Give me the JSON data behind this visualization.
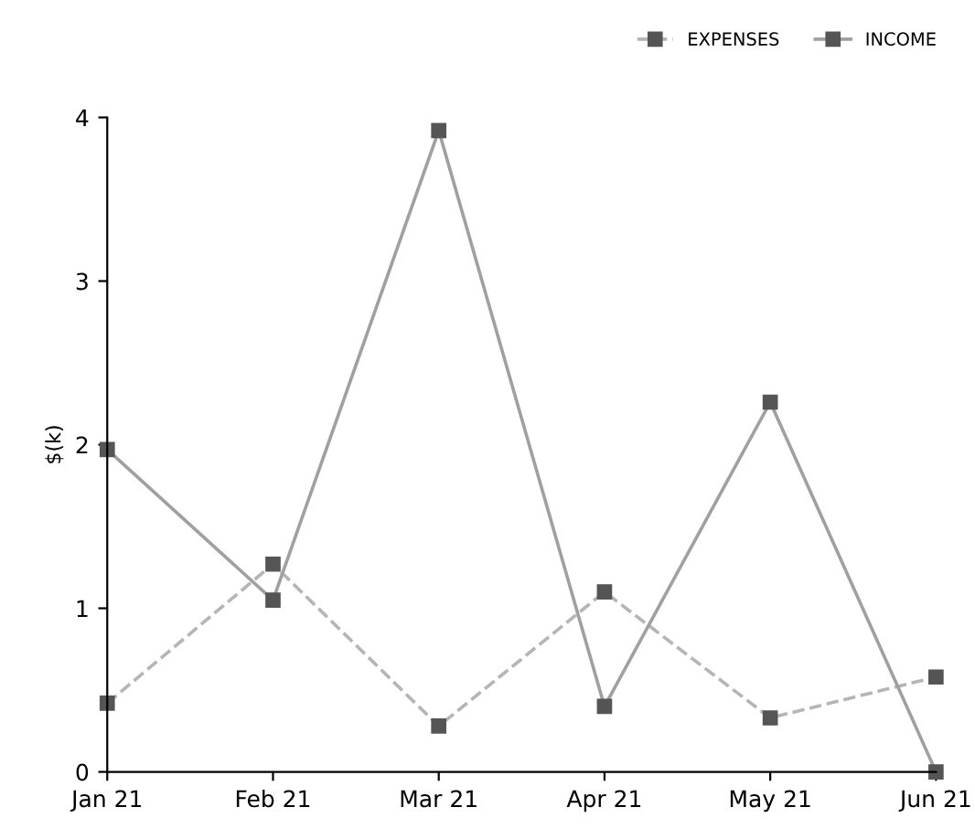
{
  "chart_data": {
    "type": "line",
    "ylabel": "$(k)",
    "categories": [
      "Jan 21",
      "Feb 21",
      "Mar 21",
      "Apr 21",
      "May 21",
      "Jun 21"
    ],
    "series": [
      {
        "name": "EXPENSES",
        "color": "#b5b5b5",
        "line_style": "dashed",
        "values": [
          0.42,
          1.27,
          0.28,
          1.1,
          0.33,
          0.58
        ]
      },
      {
        "name": "INCOME",
        "color": "#a0a0a0",
        "line_style": "solid",
        "values": [
          1.97,
          1.05,
          3.92,
          0.4,
          2.26,
          0.0
        ]
      }
    ],
    "ylim": [
      0,
      4
    ],
    "yticks": [
      0,
      1,
      2,
      3,
      4
    ],
    "grid": false,
    "legend": "top right",
    "marker": "square"
  }
}
